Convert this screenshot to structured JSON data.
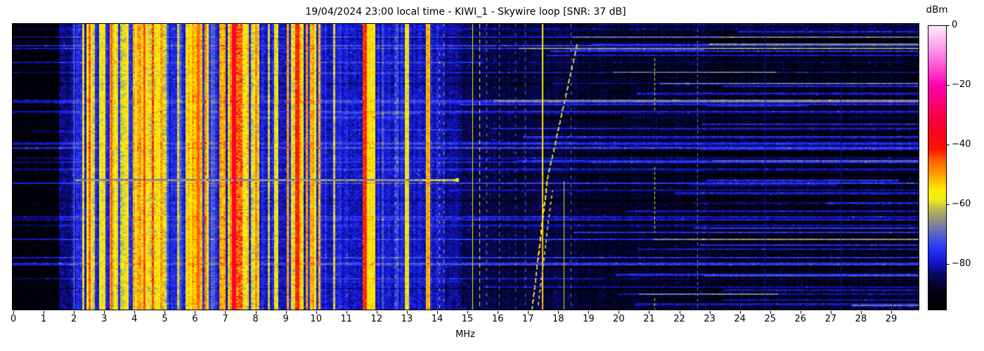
{
  "header": {
    "title": "19/04/2024 23:00 local time - KIWI_1 - Skywire loop [SNR: 37 dB]"
  },
  "chart_data": {
    "type": "heatmap",
    "title": "19/04/2024 23:00 local time - KIWI_1 - Skywire loop [SNR: 37 dB]",
    "xlabel": "MHz",
    "x_range": [
      0,
      30
    ],
    "x_ticks": [
      0,
      1,
      2,
      3,
      4,
      5,
      6,
      7,
      8,
      9,
      10,
      11,
      12,
      13,
      14,
      15,
      16,
      17,
      18,
      19,
      20,
      21,
      22,
      23,
      24,
      25,
      26,
      27,
      28,
      29
    ],
    "colorbar": {
      "label": "dBm",
      "vmin": -95,
      "vmax": 0,
      "ticks": [
        0,
        -20,
        -40,
        -60,
        -80
      ],
      "tick_labels": [
        "0",
        "−20",
        "−40",
        "−60",
        "−80"
      ]
    },
    "colormap_stops": [
      [
        0.0,
        0,
        0,
        0
      ],
      [
        0.06,
        2,
        2,
        20
      ],
      [
        0.12,
        8,
        8,
        90
      ],
      [
        0.158,
        18,
        18,
        190
      ],
      [
        0.21,
        35,
        50,
        245
      ],
      [
        0.26,
        80,
        95,
        210
      ],
      [
        0.305,
        135,
        135,
        145
      ],
      [
        0.345,
        180,
        172,
        95
      ],
      [
        0.385,
        238,
        232,
        30
      ],
      [
        0.42,
        255,
        238,
        0
      ],
      [
        0.47,
        255,
        170,
        0
      ],
      [
        0.53,
        255,
        90,
        0
      ],
      [
        0.565,
        255,
        20,
        0
      ],
      [
        0.65,
        250,
        0,
        45
      ],
      [
        0.72,
        252,
        0,
        110
      ],
      [
        0.79,
        255,
        0,
        175
      ],
      [
        0.88,
        255,
        110,
        225
      ],
      [
        1.0,
        255,
        235,
        250
      ]
    ],
    "mix_levels": {
      "blue": -78,
      "gray": -70,
      "yellow": -58.5,
      "orange": -50.5,
      "red": -44
    },
    "bands_format": "f0,f1,base_dbm_or_null,noise_sd,[pBlue,pGray,pYellow,pOrange,pRed]_or_null,row_line_gain",
    "bands": [
      [
        0,
        1.5,
        -91.5,
        1.4,
        null,
        1.6
      ],
      [
        1.5,
        1.95,
        -83,
        2.2,
        null,
        1.0
      ],
      [
        1.95,
        2.05,
        -80,
        2.5,
        null,
        1.0
      ],
      [
        2.05,
        2.5,
        null,
        3,
        [
          0.55,
          0.02,
          0.38,
          0.05,
          0
        ],
        0.6
      ],
      [
        2.5,
        3.1,
        null,
        3,
        [
          0.3,
          0.02,
          0.48,
          0.15,
          0.05
        ],
        0.5
      ],
      [
        3.1,
        3.38,
        null,
        3,
        [
          0.2,
          0.02,
          0.42,
          0.24,
          0.12
        ],
        0.5
      ],
      [
        3.38,
        3.58,
        null,
        3,
        [
          0.55,
          0.03,
          0.32,
          0.08,
          0.02
        ],
        0.5
      ],
      [
        3.58,
        4.62,
        null,
        3,
        [
          0.18,
          0.02,
          0.44,
          0.26,
          0.1
        ],
        0.5
      ],
      [
        4.62,
        5.15,
        null,
        3,
        [
          0.33,
          0.03,
          0.44,
          0.17,
          0.03
        ],
        0.5
      ],
      [
        5.15,
        5.48,
        null,
        3,
        [
          0.6,
          0.03,
          0.29,
          0.07,
          0.01
        ],
        0.5
      ],
      [
        5.48,
        6.28,
        null,
        3,
        [
          0.23,
          0.02,
          0.4,
          0.25,
          0.1
        ],
        0.5
      ],
      [
        6.28,
        6.88,
        null,
        3,
        [
          0.43,
          0.03,
          0.39,
          0.13,
          0.02
        ],
        0.5
      ],
      [
        6.88,
        7.2,
        null,
        3,
        [
          0.17,
          0.02,
          0.4,
          0.3,
          0.11
        ],
        0.5
      ],
      [
        7.2,
        7.38,
        -35,
        3.5,
        null,
        0.3
      ],
      [
        7.38,
        7.56,
        -46,
        5,
        null,
        0.4
      ],
      [
        7.56,
        8.26,
        null,
        3,
        [
          0.33,
          0.03,
          0.44,
          0.17,
          0.03
        ],
        0.5
      ],
      [
        8.26,
        8.95,
        null,
        3,
        [
          0.7,
          0.04,
          0.21,
          0.04,
          0.01
        ],
        0.6
      ],
      [
        8.95,
        9.33,
        null,
        3,
        [
          0.27,
          0.03,
          0.44,
          0.21,
          0.05
        ],
        0.5
      ],
      [
        9.33,
        9.48,
        -42,
        3,
        null,
        0.4
      ],
      [
        9.48,
        9.95,
        null,
        3,
        [
          0.13,
          0.02,
          0.42,
          0.31,
          0.12
        ],
        0.5
      ],
      [
        9.95,
        10.15,
        null,
        3,
        [
          0.48,
          0.04,
          0.42,
          0.06,
          0
        ],
        0.6
      ],
      [
        10.15,
        11.52,
        null,
        2.6,
        [
          0.86,
          0.09,
          0.05,
          0,
          0
        ],
        0.8
      ],
      [
        11.52,
        11.68,
        -43,
        3,
        null,
        0.4
      ],
      [
        11.68,
        11.98,
        -56,
        3.5,
        null,
        0.5
      ],
      [
        11.98,
        12.95,
        null,
        2.6,
        [
          0.84,
          0.11,
          0.05,
          0,
          0
        ],
        0.8
      ],
      [
        12.95,
        13.08,
        -58,
        3,
        null,
        0.5
      ],
      [
        13.08,
        13.63,
        null,
        2.6,
        [
          0.92,
          0.05,
          0.03,
          0,
          0
        ],
        0.8
      ],
      [
        13.63,
        13.78,
        -53,
        3,
        null,
        0.5
      ],
      [
        13.78,
        14.28,
        null,
        2.6,
        [
          0.91,
          0.05,
          0.04,
          0,
          0
        ],
        0.8
      ],
      [
        14.28,
        14.78,
        -81.5,
        2.4,
        null,
        1.0
      ],
      [
        14.78,
        16,
        -85,
        2.4,
        null,
        1.3
      ],
      [
        16,
        17.02,
        -86,
        2.3,
        null,
        1.4
      ],
      [
        17.02,
        18.62,
        -86,
        2.3,
        null,
        1.4
      ],
      [
        18.62,
        20,
        -87.5,
        2.2,
        null,
        1.5
      ],
      [
        20,
        23,
        -88,
        2.2,
        null,
        1.5
      ],
      [
        23,
        29.95,
        -89,
        2.1,
        null,
        1.7
      ]
    ],
    "vlines_format": "f_mhz,width_px,dbm,dash_on,dash_off,y0_frac,y1_frac,bottom_boost_db",
    "vlines": [
      [
        3.22,
        2,
        -45,
        0,
        0,
        0,
        1,
        0
      ],
      [
        4.3,
        3,
        -44,
        0,
        0,
        0,
        1,
        0
      ],
      [
        6.08,
        3,
        -45,
        0,
        0,
        0,
        1,
        0
      ],
      [
        7.28,
        3,
        -31,
        0,
        0,
        0,
        1,
        0
      ],
      [
        9.39,
        2,
        -41,
        0,
        0,
        0,
        1,
        0
      ],
      [
        11.58,
        2,
        -42,
        0,
        0,
        0,
        1,
        0
      ],
      [
        2.0,
        1,
        -66,
        0,
        0,
        0,
        1,
        0
      ],
      [
        12.6,
        1,
        -60,
        4,
        9,
        0.05,
        1,
        0
      ],
      [
        13.68,
        1,
        -47,
        0,
        0,
        0,
        1,
        0
      ],
      [
        14.06,
        1,
        -61,
        4,
        8,
        0.1,
        1,
        0
      ],
      [
        14.22,
        1,
        -62,
        4,
        10,
        0,
        1,
        0
      ],
      [
        15.16,
        1,
        -56,
        0,
        0,
        0,
        1,
        0
      ],
      [
        15.4,
        1,
        -58,
        6,
        5,
        0,
        1,
        0
      ],
      [
        15.62,
        1,
        -64,
        4,
        8,
        0,
        1,
        0
      ],
      [
        16.05,
        1,
        -68,
        5,
        6,
        0,
        1,
        0
      ],
      [
        16.57,
        1,
        -70,
        4,
        9,
        0,
        1,
        0
      ],
      [
        16.9,
        1,
        -69,
        5,
        7,
        0,
        1,
        0
      ],
      [
        17.45,
        2,
        -56,
        0,
        0,
        0,
        1,
        4
      ],
      [
        18.18,
        1,
        -58,
        0,
        0,
        0.55,
        1,
        0
      ],
      [
        18.42,
        1,
        -68,
        5,
        7,
        0,
        1,
        0
      ],
      [
        21.17,
        1,
        -57,
        4,
        3,
        0.12,
        0.31,
        0
      ],
      [
        21.17,
        1,
        -57,
        4,
        3,
        0.5,
        0.73,
        0
      ],
      [
        21.17,
        1,
        -58,
        4,
        3,
        0.96,
        1,
        0
      ],
      [
        22.6,
        1,
        -67,
        4,
        4,
        0.02,
        1,
        0
      ],
      [
        24.82,
        1,
        -80,
        0,
        0,
        0,
        1,
        0
      ],
      [
        27.33,
        1,
        -81,
        0,
        0,
        0.2,
        1,
        0
      ]
    ],
    "diagonals_format": "f0,y0_frac,f1,y1_frac,dbm,dash_on,dash_off,brightY0,brightY1,bright_dbm",
    "diagonals": [
      [
        17.11,
        1,
        17.62,
        0.54,
        -61,
        6,
        4,
        0.54,
        0.82,
        -55
      ],
      [
        17.62,
        0.54,
        18.6,
        0.07,
        -61,
        6,
        4,
        0,
        0,
        0
      ],
      [
        17.32,
        0.98,
        17.78,
        0.58,
        -63,
        4,
        5,
        0,
        0,
        0
      ]
    ],
    "streak": {
      "f0": 2.05,
      "f1": 14.68,
      "yfrac": 0.545,
      "dbm_gray": -64,
      "dbm_yellow": -59,
      "yellow_from": 13.5,
      "blob_f": 14.62,
      "blob_dbm": -55
    },
    "row_events": {
      "count": 110,
      "seed": 42,
      "boost_min": 3,
      "boost_max": 9
    },
    "noise_seed": 1337
  }
}
